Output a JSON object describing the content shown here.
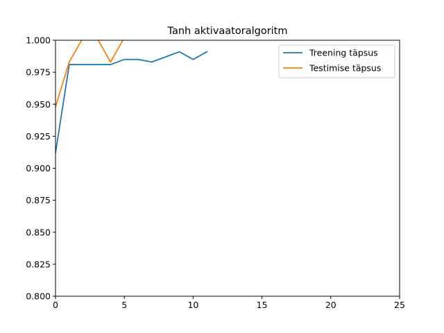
{
  "chart_data": {
    "type": "line",
    "title": "Tanh aktivaatoralgoritm",
    "xlabel": "",
    "ylabel": "",
    "xlim": [
      0,
      25
    ],
    "ylim": [
      0.8,
      1.0
    ],
    "x_ticks": [
      0,
      5,
      10,
      15,
      20,
      25
    ],
    "y_ticks": [
      0.8,
      0.825,
      0.85,
      0.875,
      0.9,
      0.925,
      0.95,
      0.975,
      1.0
    ],
    "x_tick_labels": [
      "0",
      "5",
      "10",
      "15",
      "20",
      "25"
    ],
    "y_tick_labels": [
      "0.800",
      "0.825",
      "0.850",
      "0.875",
      "0.900",
      "0.925",
      "0.950",
      "0.975",
      "1.000"
    ],
    "grid": false,
    "legend_position": "top-right",
    "series": [
      {
        "name": "Treening täpsus",
        "color": "#1f77b4",
        "x": [
          0,
          1,
          2,
          3,
          4,
          5,
          6,
          7,
          8,
          9,
          10,
          11
        ],
        "values": [
          0.912,
          0.981,
          0.981,
          0.981,
          0.981,
          0.985,
          0.985,
          0.983,
          0.987,
          0.991,
          0.985,
          0.991
        ]
      },
      {
        "name": "Testimise täpsus",
        "color": "#ff7f0e",
        "x": [
          0,
          1,
          2,
          3,
          4,
          5
        ],
        "values": [
          0.948,
          0.983,
          1.002,
          1.002,
          0.983,
          1.002
        ]
      }
    ]
  }
}
